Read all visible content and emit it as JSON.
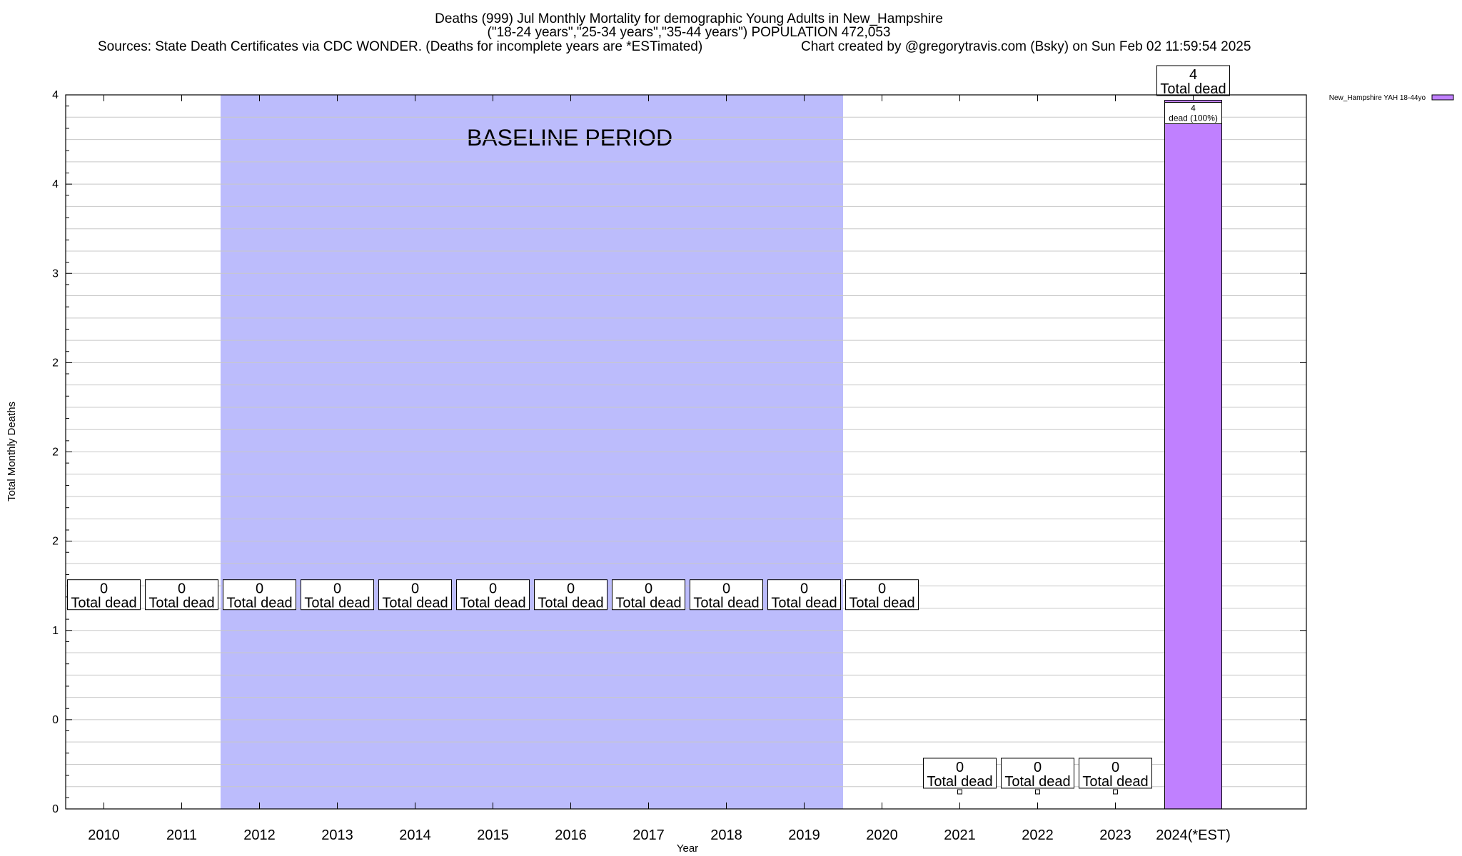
{
  "chart_data": {
    "type": "bar",
    "title_lines": [
      "Deaths (999) Jul Monthly Mortality for demographic Young Adults in New_Hampshire",
      "(\"18-24 years\",\"25-34 years\",\"35-44 years\") POPULATION 472,053"
    ],
    "sources": "Sources: State Death Certificates via CDC WONDER. (Deaths for incomplete years are *ESTimated)",
    "credit": "Chart created by @gregorytravis.com (Bsky) on Sun Feb 02 11:59:54 2025",
    "xlabel": "Year",
    "ylabel": "Total Monthly Deaths",
    "categories": [
      "2010",
      "2011",
      "2012",
      "2013",
      "2014",
      "2015",
      "2016",
      "2017",
      "2018",
      "2019",
      "2020",
      "2021",
      "2022",
      "2023",
      "2024(*EST)"
    ],
    "y_ticks": [
      {
        "value": 0,
        "label": "0"
      },
      {
        "value": 0.5,
        "label": "0"
      },
      {
        "value": 1,
        "label": "1"
      },
      {
        "value": 1.5,
        "label": "2"
      },
      {
        "value": 2,
        "label": "2"
      },
      {
        "value": 2.5,
        "label": "2"
      },
      {
        "value": 3,
        "label": "3"
      },
      {
        "value": 3.5,
        "label": "4"
      },
      {
        "value": 4,
        "label": "4"
      }
    ],
    "ylim": [
      0,
      4
    ],
    "grid": true,
    "baseline_period": {
      "label": "BASELINE PERIOD",
      "start": "2012",
      "end": "2019"
    },
    "series": [
      {
        "name": "New_Hampshire YAH 18-44yo",
        "color": "#c080ff",
        "values": [
          null,
          null,
          null,
          null,
          null,
          null,
          null,
          null,
          null,
          null,
          null,
          0,
          0,
          0,
          3.97
        ]
      }
    ],
    "total_labels": [
      {
        "category": "2010",
        "value": "0",
        "text": "Total dead",
        "at": 1.2
      },
      {
        "category": "2011",
        "value": "0",
        "text": "Total dead",
        "at": 1.2
      },
      {
        "category": "2012",
        "value": "0",
        "text": "Total dead",
        "at": 1.2
      },
      {
        "category": "2013",
        "value": "0",
        "text": "Total dead",
        "at": 1.2
      },
      {
        "category": "2014",
        "value": "0",
        "text": "Total dead",
        "at": 1.2
      },
      {
        "category": "2015",
        "value": "0",
        "text": "Total dead",
        "at": 1.2
      },
      {
        "category": "2016",
        "value": "0",
        "text": "Total dead",
        "at": 1.2
      },
      {
        "category": "2017",
        "value": "0",
        "text": "Total dead",
        "at": 1.2
      },
      {
        "category": "2018",
        "value": "0",
        "text": "Total dead",
        "at": 1.2
      },
      {
        "category": "2019",
        "value": "0",
        "text": "Total dead",
        "at": 1.2
      },
      {
        "category": "2020",
        "value": "0",
        "text": "Total dead",
        "at": 1.2
      },
      {
        "category": "2021",
        "value": "0",
        "text": "Total dead",
        "at": 0.2
      },
      {
        "category": "2022",
        "value": "0",
        "text": "Total dead",
        "at": 0.2
      },
      {
        "category": "2023",
        "value": "0",
        "text": "Total dead",
        "at": 0.2
      },
      {
        "category": "2024(*EST)",
        "value": "4",
        "text": "Total dead",
        "at": 4.08
      }
    ],
    "segment_label": {
      "category": "2024(*EST)",
      "value": "4",
      "text": "dead (100%)"
    },
    "legend": {
      "label": "New_Hampshire YAH 18-44yo",
      "color": "#c080ff",
      "position": "top-right outside"
    },
    "colors": {
      "baseline_shade": "#bcbcfc",
      "bar": "#c080ff",
      "grid": "#c8c8c8"
    }
  }
}
